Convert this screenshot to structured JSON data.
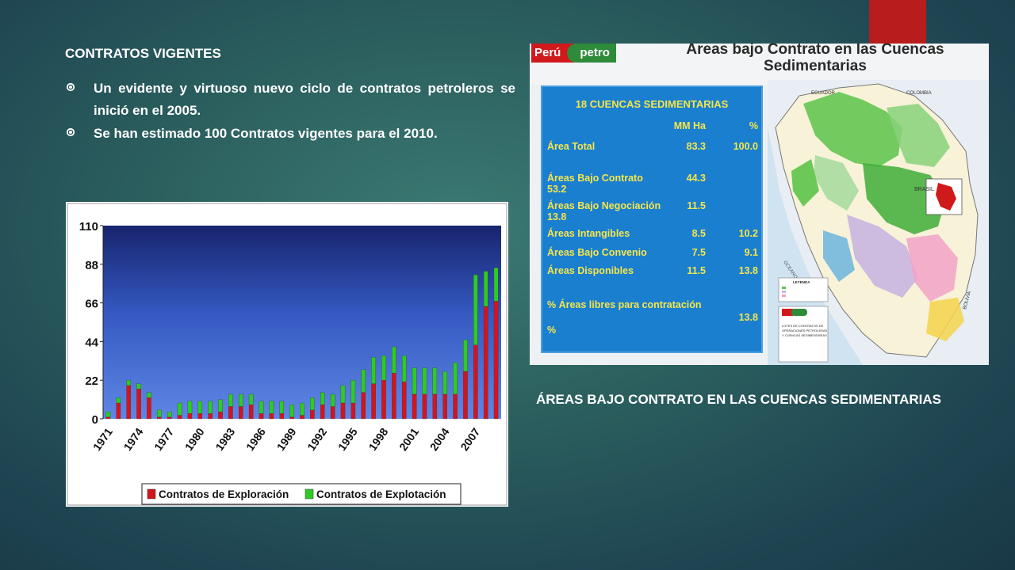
{
  "slide": {
    "heading": "CONTRATOS VIGENTES",
    "bullets": [
      "Un evidente y virtuoso nuevo ciclo de contratos petroleros se inició en el 2005.",
      "Se han estimado 100 Contratos vigentes para el 2010."
    ],
    "caption": "ÁREAS BAJO CONTRATO EN LAS CUENCAS SEDIMENTARIAS",
    "accent_color": "#b81c1c"
  },
  "chart_data": {
    "type": "bar",
    "stacked": true,
    "categories": [
      "1971",
      "1972",
      "1973",
      "1974",
      "1975",
      "1976",
      "1977",
      "1978",
      "1979",
      "1980",
      "1981",
      "1982",
      "1983",
      "1984",
      "1985",
      "1986",
      "1987",
      "1988",
      "1989",
      "1990",
      "1991",
      "1992",
      "1993",
      "1994",
      "1995",
      "1996",
      "1997",
      "1998",
      "1999",
      "2000",
      "2001",
      "2002",
      "2003",
      "2004",
      "2005",
      "2006",
      "2007",
      "2008",
      "2009"
    ],
    "tick_labels": [
      "1971",
      "1974",
      "1977",
      "1980",
      "1983",
      "1986",
      "1989",
      "1992",
      "1995",
      "1998",
      "2001",
      "2004",
      "2007"
    ],
    "series": [
      {
        "name": "Contratos de Exploración",
        "color": "#d4141c",
        "values": [
          1,
          9,
          19,
          17,
          12,
          1,
          1,
          2,
          3,
          3,
          3,
          4,
          7,
          7,
          8,
          3,
          3,
          3,
          1,
          2,
          5,
          8,
          7,
          9,
          9,
          15,
          20,
          22,
          26,
          21,
          14,
          14,
          14,
          14,
          14,
          27,
          42,
          64,
          67
        ]
      },
      {
        "name": "Contratos de Explotación",
        "color": "#2ecc22",
        "values": [
          3,
          3,
          3,
          3,
          3,
          4,
          3,
          7,
          7,
          7,
          7,
          7,
          7,
          7,
          6,
          7,
          7,
          7,
          7,
          7,
          7,
          7,
          7,
          10,
          13,
          13,
          15,
          14,
          15,
          15,
          15,
          15,
          15,
          13,
          18,
          18,
          40,
          20,
          19
        ]
      }
    ],
    "yticks": [
      0,
      22,
      44,
      66,
      88,
      110
    ],
    "ylim": [
      0,
      110
    ],
    "grid": false,
    "legend": "bottom"
  },
  "map_panel": {
    "logo_left": "Perú",
    "logo_right": "petro",
    "title_line1": "Áreas bajo Contrato en las Cuencas",
    "title_line2": "Sedimentarias",
    "table_title": "18 CUENCAS SEDIMENTARIAS",
    "col_units": "MM Ha",
    "col_pct": "%",
    "rows": [
      {
        "label": "Área Total",
        "value": "83.3",
        "pct": "100.0"
      },
      {
        "label": "Áreas Bajo Contrato",
        "value": "44.3",
        "pct": "53.2"
      },
      {
        "label": "Áreas Bajo Negociación",
        "value": "11.5",
        "pct": "13.8"
      },
      {
        "label": "Áreas Intangibles",
        "value": "8.5",
        "pct": "10.2"
      },
      {
        "label": "Áreas Bajo Convenio",
        "value": "7.5",
        "pct": "9.1"
      },
      {
        "label": "Áreas Disponibles",
        "value": "11.5",
        "pct": "13.8"
      }
    ],
    "free_label_line1": "% Áreas libres para contratación",
    "free_label_line2": "%",
    "free_pct": "13.8",
    "map_labels": {
      "ecuador": "ECUADOR",
      "colombia": "COLOMBIA",
      "brasil": "BRASIL",
      "bolivia": "BOLIVIA",
      "ocean": "OCEANO PACIFICO",
      "legend_title": "LEYENDA",
      "box_caption_1": "LOTES DE CONTRATOS DE",
      "box_caption_2": "OPERACIONES PETROLERAS",
      "box_caption_3": "Y CUENCAS SEDIMENTARIAS"
    }
  }
}
